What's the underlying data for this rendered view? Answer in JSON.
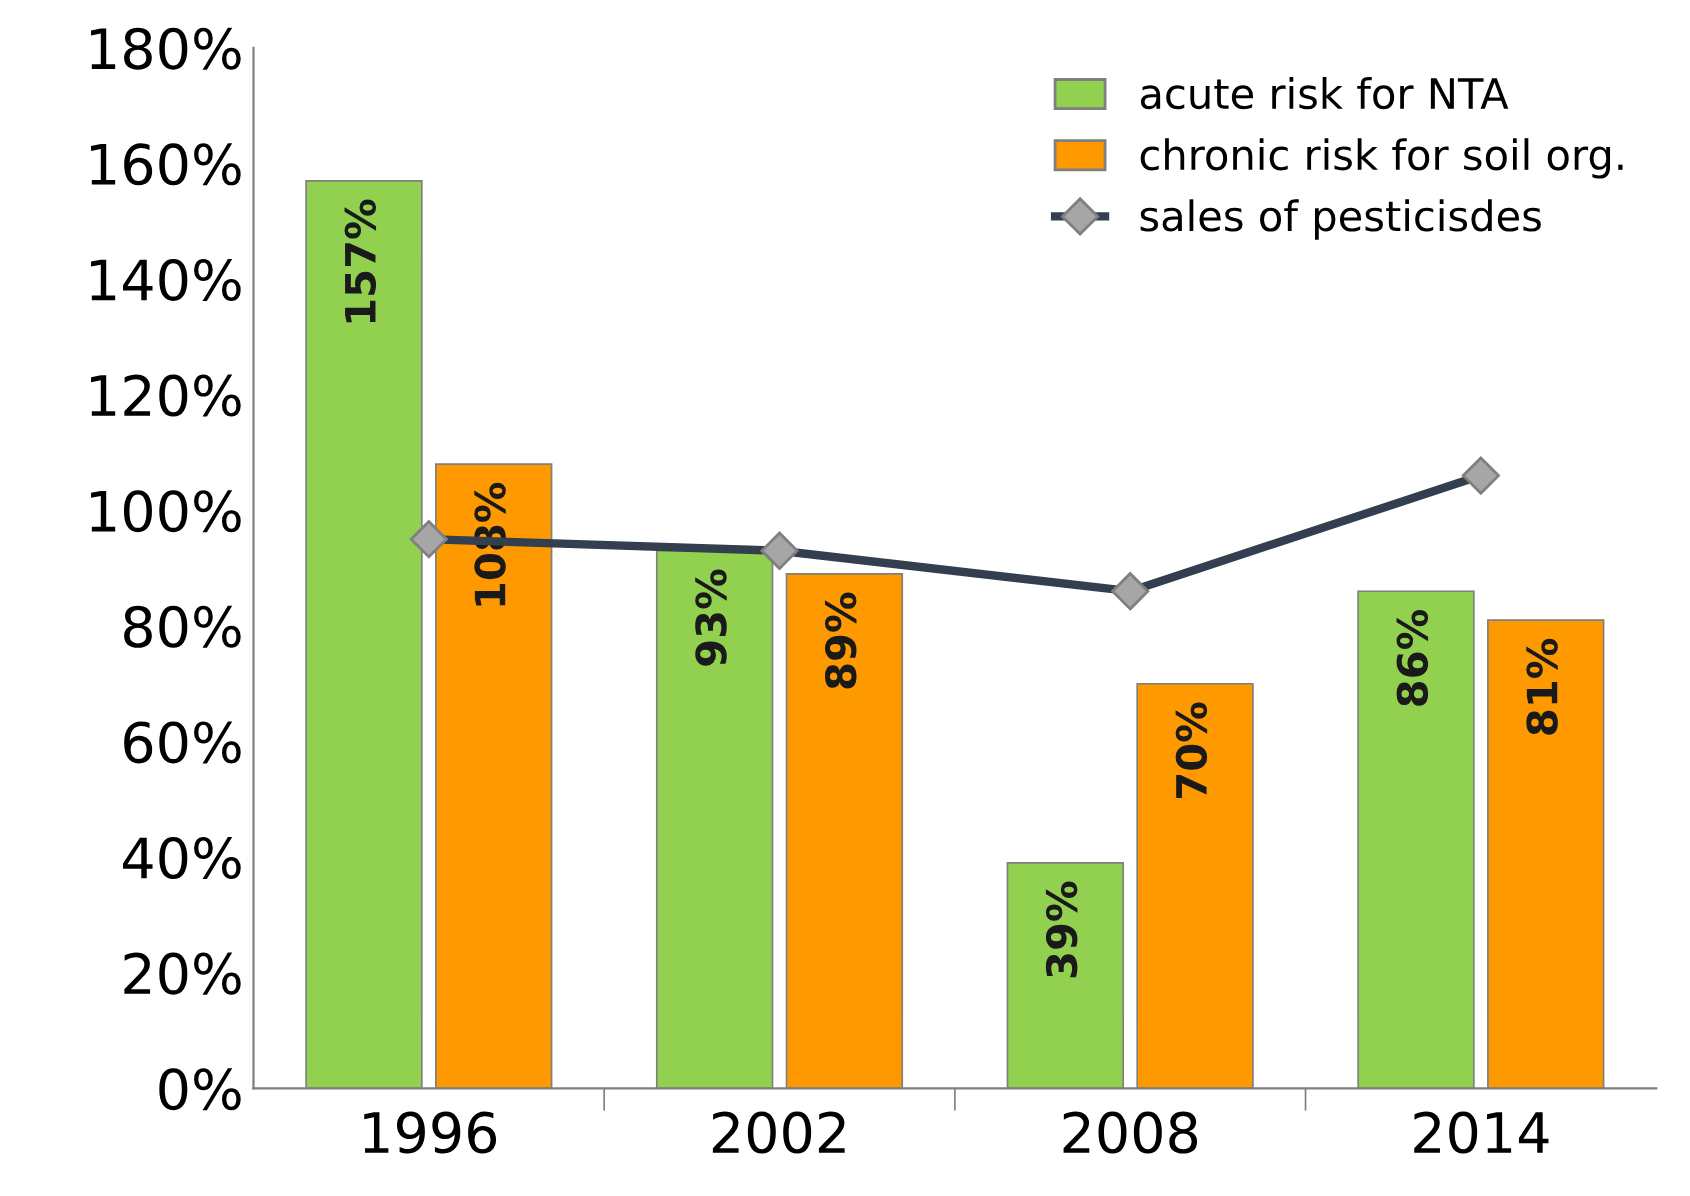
{
  "chart_data": {
    "type": "bar",
    "categories": [
      "1996",
      "2002",
      "2008",
      "2014"
    ],
    "series": [
      {
        "name": "acute risk for NTA",
        "color": "#92d050",
        "values": [
          157,
          93,
          39,
          86
        ],
        "value_labels": [
          "157%",
          "93%",
          "39%",
          "86%"
        ]
      },
      {
        "name": "chronic risk for soil org.",
        "color": "#ff9900",
        "values": [
          108,
          89,
          70,
          81
        ],
        "value_labels": [
          "108%",
          "89%",
          "70%",
          "81%"
        ]
      },
      {
        "name": "sales of pesticisdes",
        "type": "line",
        "color": "#333f4f",
        "marker": "diamond",
        "values": [
          95,
          93,
          86,
          106
        ]
      }
    ],
    "ylim": [
      0,
      180
    ],
    "yticks": [
      {
        "value": 0,
        "label": "0%"
      },
      {
        "value": 20,
        "label": "20%"
      },
      {
        "value": 40,
        "label": "40%"
      },
      {
        "value": 60,
        "label": "60%"
      },
      {
        "value": 80,
        "label": "80%"
      },
      {
        "value": 100,
        "label": "100%"
      },
      {
        "value": 120,
        "label": "120%"
      },
      {
        "value": 140,
        "label": "140%"
      },
      {
        "value": 160,
        "label": "160%"
      },
      {
        "value": 180,
        "label": "180%"
      }
    ],
    "grid": false,
    "legend": "top right"
  }
}
